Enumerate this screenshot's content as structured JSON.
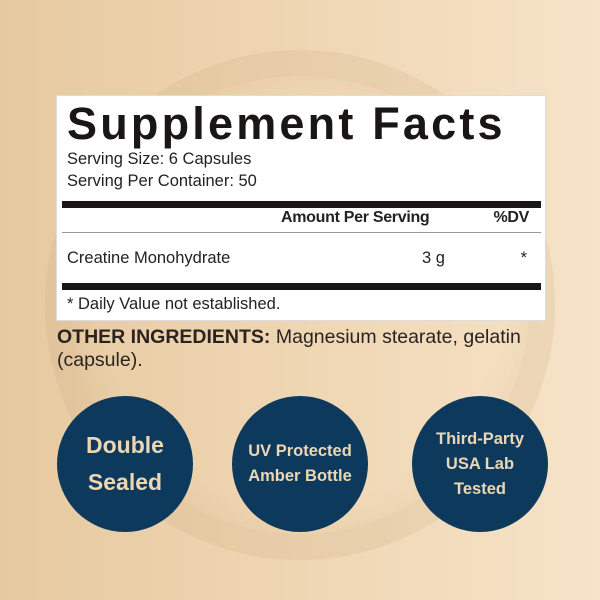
{
  "label": {
    "title": "Supplement Facts",
    "serving_size": "Serving Size: 6 Capsules",
    "servings_per_container": "Serving Per Container: 50",
    "col_amount": "Amount Per Serving",
    "col_dv": "%DV",
    "rows": [
      {
        "name": "Creatine Monohydrate",
        "amount": "3 g",
        "dv": "*"
      }
    ],
    "footnote": "* Daily Value not established."
  },
  "other_ingredients": {
    "heading": "OTHER INGREDIENTS:",
    "text": " Magnesium stearate, gelatin (capsule)."
  },
  "badges": [
    {
      "lines": [
        "Double",
        "Sealed"
      ]
    },
    {
      "lines": [
        "UV Protected",
        "Amber Bottle"
      ]
    },
    {
      "lines": [
        "Third-Party",
        "USA Lab",
        "Tested"
      ]
    }
  ],
  "colors": {
    "badge_bg": "#0d3a5c",
    "badge_text": "#ecd6b4",
    "background": "#efd6b3"
  }
}
